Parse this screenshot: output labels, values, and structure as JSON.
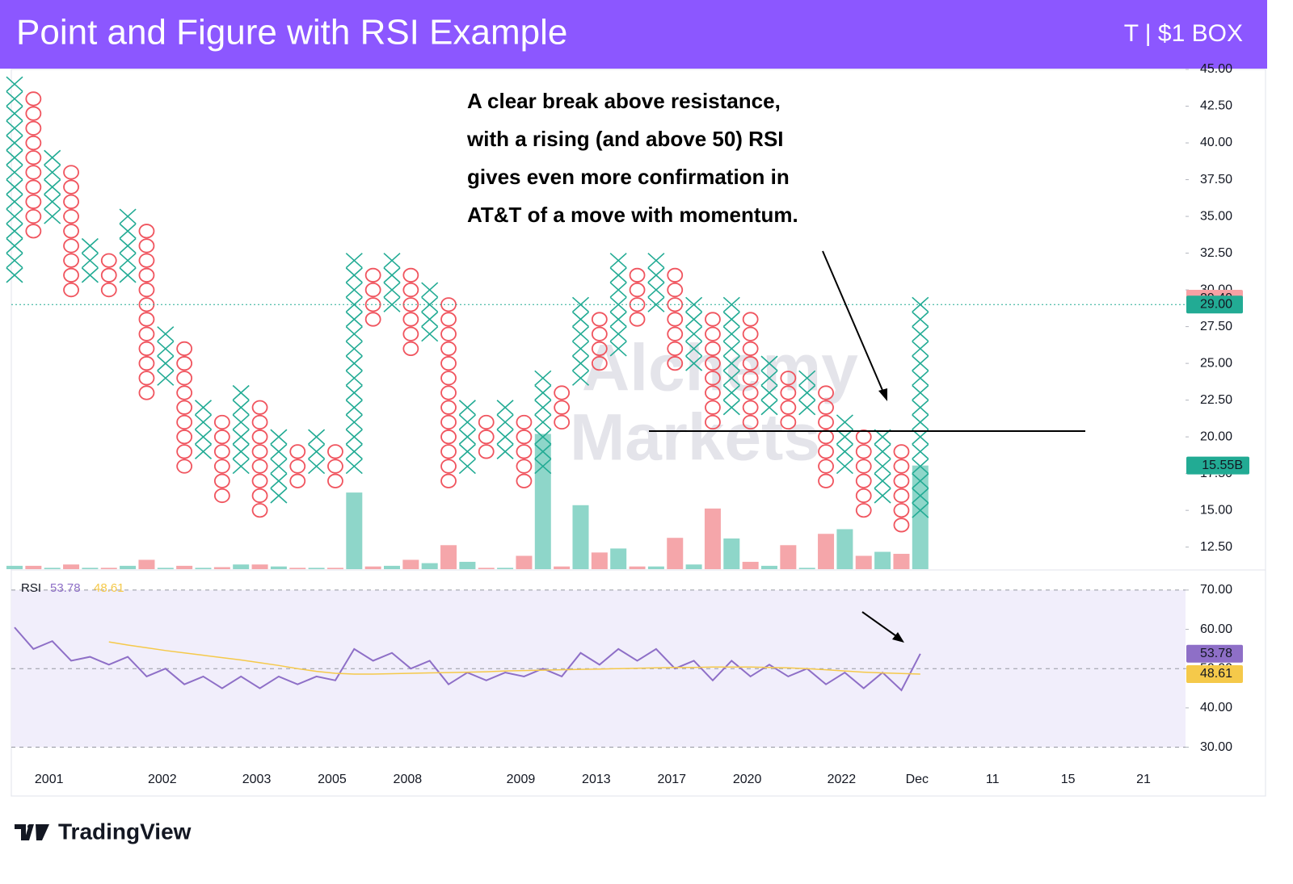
{
  "header": {
    "title": "Point and Figure with RSI Example",
    "symbol": "T | $1 BOX"
  },
  "footer": {
    "brand": "TradingView"
  },
  "watermark": [
    "Alchemy",
    "Markets"
  ],
  "chart_data": {
    "type": "point-and-figure",
    "annotation": [
      "A clear break above resistance,",
      "with a rising (and above 50) RSI",
      "gives even more confirmation in",
      "AT&T of a move with momentum."
    ],
    "box_size": 1,
    "x_color": "#22ab94",
    "o_color": "#f0545e",
    "columns": [
      {
        "kind": "X",
        "low": 31,
        "high": 44
      },
      {
        "kind": "O",
        "low": 34,
        "high": 43
      },
      {
        "kind": "X",
        "low": 35,
        "high": 39
      },
      {
        "kind": "O",
        "low": 30,
        "high": 38
      },
      {
        "kind": "X",
        "low": 31,
        "high": 33
      },
      {
        "kind": "O",
        "low": 30,
        "high": 32
      },
      {
        "kind": "X",
        "low": 31,
        "high": 35
      },
      {
        "kind": "O",
        "low": 23,
        "high": 34
      },
      {
        "kind": "X",
        "low": 24,
        "high": 27
      },
      {
        "kind": "O",
        "low": 18,
        "high": 26
      },
      {
        "kind": "X",
        "low": 19,
        "high": 22
      },
      {
        "kind": "O",
        "low": 16,
        "high": 21
      },
      {
        "kind": "X",
        "low": 18,
        "high": 23
      },
      {
        "kind": "O",
        "low": 15,
        "high": 22
      },
      {
        "kind": "X",
        "low": 16,
        "high": 20
      },
      {
        "kind": "O",
        "low": 17,
        "high": 19
      },
      {
        "kind": "X",
        "low": 18,
        "high": 20
      },
      {
        "kind": "O",
        "low": 17,
        "high": 19
      },
      {
        "kind": "X",
        "low": 18,
        "high": 32
      },
      {
        "kind": "O",
        "low": 28,
        "high": 31
      },
      {
        "kind": "X",
        "low": 29,
        "high": 32
      },
      {
        "kind": "O",
        "low": 26,
        "high": 31
      },
      {
        "kind": "X",
        "low": 27,
        "high": 30
      },
      {
        "kind": "O",
        "low": 17,
        "high": 29
      },
      {
        "kind": "X",
        "low": 18,
        "high": 22
      },
      {
        "kind": "O",
        "low": 19,
        "high": 21
      },
      {
        "kind": "X",
        "low": 19,
        "high": 22
      },
      {
        "kind": "O",
        "low": 17,
        "high": 21
      },
      {
        "kind": "X",
        "low": 18,
        "high": 24
      },
      {
        "kind": "O",
        "low": 21,
        "high": 23
      },
      {
        "kind": "X",
        "low": 24,
        "high": 29
      },
      {
        "kind": "O",
        "low": 25,
        "high": 28
      },
      {
        "kind": "X",
        "low": 26,
        "high": 32
      },
      {
        "kind": "O",
        "low": 28,
        "high": 31
      },
      {
        "kind": "X",
        "low": 29,
        "high": 32
      },
      {
        "kind": "O",
        "low": 25,
        "high": 31
      },
      {
        "kind": "X",
        "low": 25,
        "high": 29
      },
      {
        "kind": "O",
        "low": 21,
        "high": 28
      },
      {
        "kind": "X",
        "low": 22,
        "high": 29
      },
      {
        "kind": "O",
        "low": 21,
        "high": 28
      },
      {
        "kind": "X",
        "low": 22,
        "high": 25
      },
      {
        "kind": "O",
        "low": 21,
        "high": 24
      },
      {
        "kind": "X",
        "low": 22,
        "high": 24
      },
      {
        "kind": "O",
        "low": 17,
        "high": 23
      },
      {
        "kind": "X",
        "low": 18,
        "high": 21
      },
      {
        "kind": "O",
        "low": 15,
        "high": 20
      },
      {
        "kind": "X",
        "low": 16,
        "high": 20
      },
      {
        "kind": "O",
        "low": 14,
        "high": 19
      },
      {
        "kind": "X",
        "low": 15,
        "high": 29
      }
    ],
    "categories": [
      null,
      null,
      "2001",
      null,
      null,
      null,
      null,
      null,
      "2002",
      null,
      null,
      null,
      null,
      "2003",
      null,
      null,
      null,
      "2005",
      null,
      null,
      null,
      "2008",
      null,
      null,
      null,
      null,
      null,
      "2009",
      null,
      null,
      null,
      "2013",
      null,
      null,
      null,
      "2017",
      null,
      null,
      null,
      "2020",
      null,
      null,
      null,
      null,
      "2022",
      null,
      null,
      null,
      "Dec",
      null,
      null,
      null,
      "11",
      null,
      null,
      null,
      "15",
      null,
      null,
      null,
      "21"
    ],
    "ylim": [
      11,
      45
    ],
    "yticks": [
      {
        "value": 12.5,
        "label": "12.50"
      },
      {
        "value": 15,
        "label": "15.00"
      },
      {
        "value": 17.5,
        "label": "17.50"
      },
      {
        "value": 20,
        "label": "20.00"
      },
      {
        "value": 22.5,
        "label": "22.50"
      },
      {
        "value": 25,
        "label": "25.00"
      },
      {
        "value": 27.5,
        "label": "27.50"
      },
      {
        "value": 30,
        "label": "30.00"
      },
      {
        "value": 32.5,
        "label": "32.50"
      },
      {
        "value": 35,
        "label": "35.00"
      },
      {
        "value": 37.5,
        "label": "37.50"
      },
      {
        "value": 40,
        "label": "40.00"
      },
      {
        "value": 42.5,
        "label": "42.50"
      },
      {
        "value": 45,
        "label": "45.00"
      }
    ],
    "price_labels": [
      {
        "value": 29.4,
        "label": "29.40",
        "color": "#f7a1a4"
      },
      {
        "value": 29,
        "label": "29.00",
        "color": "#22ab94"
      }
    ],
    "volume": {
      "vlim": [
        0,
        75
      ],
      "up_color": "#8ed6c9",
      "down_color": "#f5a6aa",
      "values": [
        0.5,
        0.5,
        0.2,
        0.7,
        0.2,
        0.2,
        0.5,
        1.4,
        0.2,
        0.5,
        0.2,
        0.3,
        0.7,
        0.7,
        0.4,
        0.2,
        0.2,
        0.2,
        11.5,
        0.4,
        0.5,
        1.4,
        0.9,
        3.6,
        1.1,
        0.2,
        0.2,
        2.0,
        20.3,
        0.4,
        9.6,
        2.5,
        3.1,
        0.4,
        0.4,
        4.7,
        0.7,
        9.1,
        4.6,
        1.1,
        0.5,
        3.6,
        0.2,
        5.3,
        6.0,
        2.0,
        2.6,
        2.3,
        15.55
      ],
      "value_labels": [
        null,
        null,
        null,
        null,
        null,
        null,
        null,
        null,
        null,
        null,
        null,
        null,
        null,
        null,
        null,
        null,
        null,
        null,
        null,
        null,
        null,
        null,
        null,
        null,
        null,
        null,
        null,
        null,
        null,
        null,
        null,
        null,
        null,
        null,
        null,
        null,
        null,
        null,
        null,
        null,
        null,
        null,
        null,
        null,
        null,
        null,
        null,
        null,
        "15.55B"
      ]
    },
    "rsi": {
      "name": "RSI",
      "ylim": [
        26,
        74.7
      ],
      "yticks": [
        {
          "value": 30,
          "label": "30.00"
        },
        {
          "value": 40,
          "label": "40.00"
        },
        {
          "value": 50,
          "label": "50.00"
        },
        {
          "value": 60,
          "label": "60.00"
        },
        {
          "value": 70,
          "label": "70.00"
        }
      ],
      "bands": [
        30,
        50,
        70
      ],
      "series": [
        {
          "color": "#8e6fc7",
          "values": [
            60.5,
            55,
            57,
            52,
            53,
            51,
            53,
            48,
            50,
            46,
            48,
            45,
            48,
            45,
            48,
            46,
            48,
            47,
            55,
            52,
            54,
            50,
            52,
            46,
            49,
            47,
            49,
            48,
            50,
            48,
            54,
            51,
            55,
            52,
            55,
            50,
            52,
            47,
            52,
            48,
            51,
            48,
            50,
            46,
            49,
            45,
            49,
            44.5,
            53.78
          ],
          "value_labels": [
            null,
            null,
            null,
            null,
            null,
            null,
            null,
            null,
            null,
            null,
            null,
            null,
            null,
            null,
            null,
            null,
            null,
            null,
            null,
            null,
            null,
            null,
            null,
            null,
            null,
            null,
            null,
            null,
            null,
            null,
            null,
            null,
            null,
            null,
            null,
            null,
            null,
            null,
            null,
            null,
            null,
            null,
            null,
            null,
            null,
            null,
            null,
            null,
            "53.78"
          ]
        },
        {
          "color": "#f5c94a",
          "values": [
            null,
            null,
            null,
            null,
            null,
            56.8,
            56,
            55.3,
            54.6,
            54,
            53.4,
            52.8,
            52.2,
            51.5,
            50.8,
            50,
            49.3,
            48.8,
            48.6,
            48.6,
            48.7,
            48.8,
            48.9,
            49,
            49.1,
            49.2,
            49.4,
            49.5,
            49.6,
            49.7,
            49.8,
            49.9,
            50,
            50.1,
            50.2,
            50.3,
            50.3,
            50.4,
            50.4,
            50.4,
            50.3,
            50.2,
            50,
            49.7,
            49.4,
            49.1,
            48.9,
            48.75,
            48.61
          ],
          "value_labels": [
            null,
            null,
            null,
            null,
            null,
            null,
            null,
            null,
            null,
            null,
            null,
            null,
            null,
            null,
            null,
            null,
            null,
            null,
            null,
            null,
            null,
            null,
            null,
            null,
            null,
            null,
            null,
            null,
            null,
            null,
            null,
            null,
            null,
            null,
            null,
            null,
            null,
            null,
            null,
            null,
            null,
            null,
            null,
            null,
            null,
            null,
            null,
            null,
            "48.61"
          ]
        }
      ]
    }
  }
}
